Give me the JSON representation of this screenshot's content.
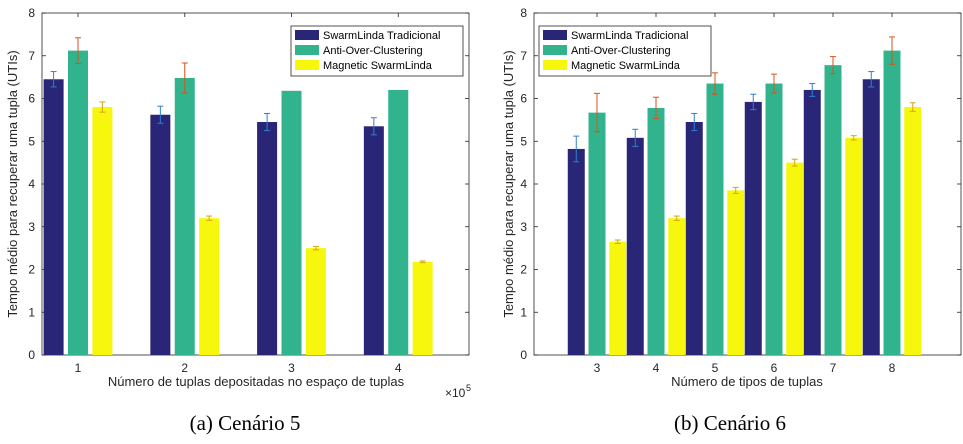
{
  "colors": {
    "series": [
      "#2a2677",
      "#31b48e",
      "#f7f70e"
    ],
    "error_bars": [
      "#2f7fd0",
      "#d95319",
      "#d4a514"
    ],
    "axis": "#262626"
  },
  "chart_data": [
    {
      "type": "bar",
      "caption": "(a)  Cenário 5",
      "categories": [
        "1",
        "2",
        "3",
        "4"
      ],
      "xlabel": "Número de tuplas depositadas no espaço de tuplas",
      "x_multiplier": "×10",
      "x_multiplier_exp": "5",
      "ylabel": "Tempo médio para recuperar uma tupla (UTIs)",
      "ylim": [
        0,
        8
      ],
      "yticks": [
        "0",
        "1",
        "2",
        "3",
        "4",
        "5",
        "6",
        "7",
        "8"
      ],
      "legend_position": "top-right",
      "grid": false,
      "series": [
        {
          "name": "SwarmLinda Tradicional",
          "values": [
            6.45,
            5.62,
            5.45,
            5.35
          ],
          "errors": [
            0.18,
            0.2,
            0.2,
            0.2
          ]
        },
        {
          "name": "Anti-Over-Clustering",
          "values": [
            7.12,
            6.48,
            6.18,
            6.2
          ],
          "errors": [
            0.3,
            0.35,
            0.0,
            0.0
          ]
        },
        {
          "name": "Magnetic SwarmLinda",
          "values": [
            5.8,
            3.2,
            2.5,
            2.18
          ],
          "errors": [
            0.12,
            0.05,
            0.04,
            0.02
          ]
        }
      ]
    },
    {
      "type": "bar",
      "caption": "(b)  Cenário 6",
      "categories": [
        "3",
        "4",
        "5",
        "6",
        "7",
        "8"
      ],
      "xlabel": "Número de tipos de tuplas",
      "ylabel": "Tempo médio para recuperar uma tupla (UTIs)",
      "ylim": [
        0,
        8
      ],
      "yticks": [
        "0",
        "1",
        "2",
        "3",
        "4",
        "5",
        "6",
        "7",
        "8"
      ],
      "legend_position": "top-left",
      "grid": false,
      "series": [
        {
          "name": "SwarmLinda Tradicional",
          "values": [
            4.82,
            5.08,
            5.45,
            5.92,
            6.2,
            6.45
          ],
          "errors": [
            0.3,
            0.2,
            0.2,
            0.18,
            0.15,
            0.18
          ]
        },
        {
          "name": "Anti-Over-Clustering",
          "values": [
            5.67,
            5.78,
            6.35,
            6.35,
            6.78,
            7.12
          ],
          "errors": [
            0.45,
            0.25,
            0.25,
            0.22,
            0.2,
            0.32
          ]
        },
        {
          "name": "Magnetic SwarmLinda",
          "values": [
            2.65,
            3.2,
            3.85,
            4.5,
            5.08,
            5.8
          ],
          "errors": [
            0.04,
            0.05,
            0.07,
            0.08,
            0.05,
            0.1
          ]
        }
      ]
    }
  ]
}
